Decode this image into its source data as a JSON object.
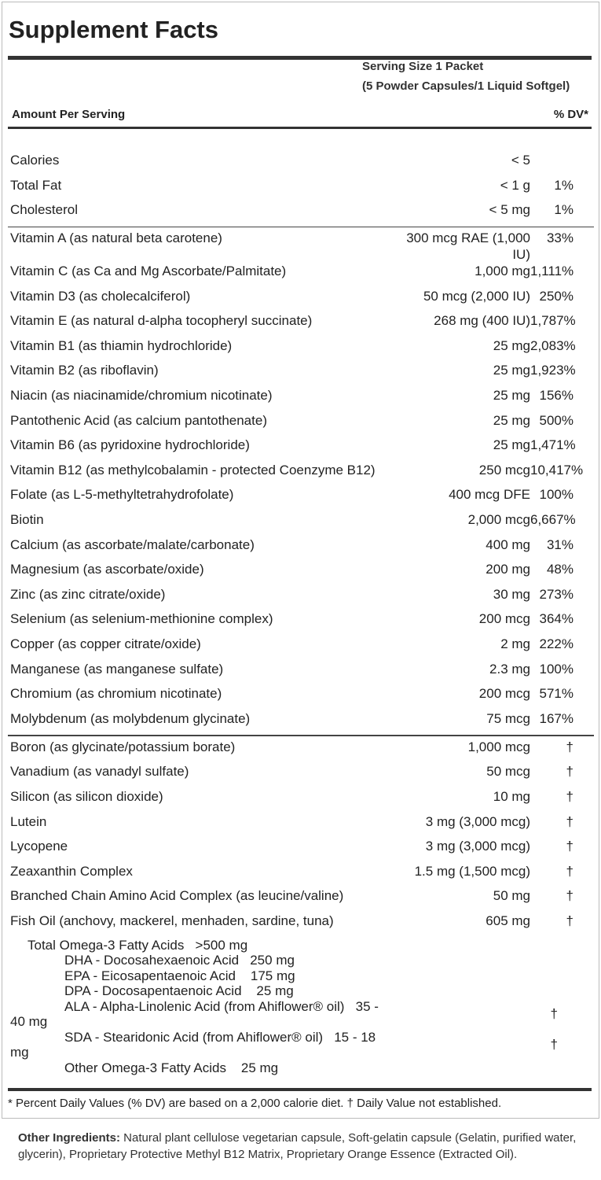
{
  "title": "Supplement Facts",
  "serving": {
    "line1": "Serving Size 1 Packet",
    "line2": "(5 Powder Capsules/1 Liquid Softgel)"
  },
  "headers": {
    "amount": "Amount Per Serving",
    "dv": "% DV*"
  },
  "group1": [
    {
      "name": "Calories",
      "amount": "< 5",
      "dv": ""
    },
    {
      "name": "Total Fat",
      "amount": "< 1 g",
      "dv": "1%"
    },
    {
      "name": "Cholesterol",
      "amount": "< 5 mg",
      "dv": "1%"
    }
  ],
  "group2": [
    {
      "name": "Vitamin A (as natural beta carotene)",
      "amount": "300 mcg RAE (1,000 IU)",
      "dv": "33%"
    },
    {
      "name": "Vitamin C (as Ca and Mg Ascorbate/Palmitate)",
      "amount": "1,000 mg",
      "dv": "1,111%"
    },
    {
      "name": "Vitamin D3 (as cholecalciferol)",
      "amount": "50 mcg (2,000 IU)",
      "dv": "250%"
    },
    {
      "name": "Vitamin E (as natural d-alpha tocopheryl succinate)",
      "amount": "268 mg (400 IU)",
      "dv": "1,787%"
    },
    {
      "name": "Vitamin B1 (as thiamin hydrochloride)",
      "amount": "25 mg",
      "dv": "2,083%"
    },
    {
      "name": "Vitamin B2 (as riboflavin)",
      "amount": "25 mg",
      "dv": "1,923%"
    },
    {
      "name": "Niacin (as niacinamide/chromium nicotinate)",
      "amount": "25 mg",
      "dv": "156%"
    },
    {
      "name": "Pantothenic Acid (as calcium pantothenate)",
      "amount": "25 mg",
      "dv": "500%"
    },
    {
      "name": "Vitamin B6 (as pyridoxine hydrochloride)",
      "amount": "25 mg",
      "dv": "1,471%"
    },
    {
      "name": "Vitamin B12 (as methylcobalamin - protected Coenzyme B12)",
      "amount": "250 mcg",
      "dv": "10,417%"
    },
    {
      "name": "Folate (as L-5-methyltetrahydrofolate)",
      "amount": "400 mcg DFE",
      "dv": "100%"
    },
    {
      "name": "Biotin",
      "amount": "2,000 mcg",
      "dv": "6,667%"
    },
    {
      "name": "Calcium (as ascorbate/malate/carbonate)",
      "amount": "400 mg",
      "dv": "31%"
    },
    {
      "name": "Magnesium (as ascorbate/oxide)",
      "amount": "200 mg",
      "dv": "48%"
    },
    {
      "name": "Zinc (as zinc citrate/oxide)",
      "amount": "30 mg",
      "dv": "273%"
    },
    {
      "name": "Selenium (as selenium-methionine complex)",
      "amount": "200 mcg",
      "dv": "364%"
    },
    {
      "name": "Copper (as copper citrate/oxide)",
      "amount": "2 mg",
      "dv": "222%"
    },
    {
      "name": "Manganese (as manganese sulfate)",
      "amount": "2.3 mg",
      "dv": "100%"
    },
    {
      "name": "Chromium (as chromium nicotinate)",
      "amount": "200 mcg",
      "dv": "571%"
    },
    {
      "name": "Molybdenum (as molybdenum glycinate)",
      "amount": "75 mcg",
      "dv": "167%"
    }
  ],
  "group3": [
    {
      "name": "Boron (as glycinate/potassium borate)",
      "amount": "1,000 mcg",
      "dv": "†"
    },
    {
      "name": "Vanadium (as vanadyl sulfate)",
      "amount": "50 mcg",
      "dv": "†"
    },
    {
      "name": "Silicon (as silicon dioxide)",
      "amount": "10 mg",
      "dv": "†"
    },
    {
      "name": "Lutein",
      "amount": "3 mg (3,000 mcg)",
      "dv": "†"
    },
    {
      "name": "Lycopene",
      "amount": "3 mg (3,000 mcg)",
      "dv": "†"
    },
    {
      "name": "Zeaxanthin Complex",
      "amount": "1.5 mg (1,500 mcg)",
      "dv": "†"
    },
    {
      "name": "Branched Chain Amino Acid Complex (as leucine/valine)",
      "amount": "50 mg",
      "dv": "†"
    },
    {
      "name": "Fish Oil (anchovy, mackerel, menhaden, sardine, tuna)",
      "amount": "605 mg",
      "dv": "†"
    }
  ],
  "omega": [
    {
      "text": "Total Omega-3 Fatty Acids   >500 mg",
      "indent": 1,
      "dv": ""
    },
    {
      "text": "DHA - Docosahexaenoic Acid   250 mg",
      "indent": 2,
      "dv": ""
    },
    {
      "text": "EPA - Eicosapentaenoic Acid    175 mg",
      "indent": 2,
      "dv": ""
    },
    {
      "text": "DPA - Docosapentaenoic Acid    25 mg",
      "indent": 2,
      "dv": ""
    },
    {
      "text": "ALA - Alpha-Linolenic Acid (from Ahiflower® oil)   35 - 40 mg",
      "indent": 2,
      "dv": "†"
    },
    {
      "text": "SDA - Stearidonic Acid (from Ahiflower® oil)   15 - 18 mg",
      "indent": 2,
      "dv": "†"
    },
    {
      "text": "Other Omega-3 Fatty Acids    25 mg",
      "indent": 2,
      "dv": ""
    }
  ],
  "footnote": "* Percent Daily Values (% DV) are based on a 2,000 calorie diet. † Daily Value not established.",
  "other_ingredients": {
    "label": "Other Ingredients:",
    "text": " Natural plant cellulose vegetarian capsule, Soft-gelatin capsule (Gelatin, purified water, glycerin), Proprietary Protective Methyl B12 Matrix, Proprietary Orange Essence (Extracted Oil)."
  }
}
